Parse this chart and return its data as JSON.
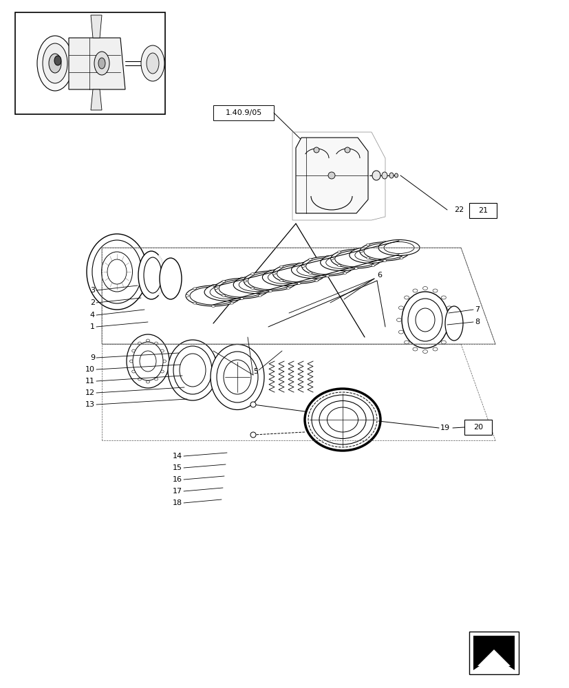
{
  "bg_color": "#ffffff",
  "lc": "#000000",
  "fig_w": 8.28,
  "fig_h": 10.0,
  "ref_label": "1.40.9/05",
  "box_21_label": "21",
  "box_20_label": "20",
  "label_1": "1",
  "label_2": "2",
  "label_3": "3",
  "label_4": "4",
  "label_5": "5",
  "label_6": "6",
  "label_7": "7",
  "label_8": "8",
  "label_9": "9",
  "label_10": "10",
  "label_11": "11",
  "label_12": "12",
  "label_13": "13",
  "label_14": "14",
  "label_15": "15",
  "label_16": "16",
  "label_17": "17",
  "label_18": "18",
  "label_19": "19",
  "label_22": "22"
}
